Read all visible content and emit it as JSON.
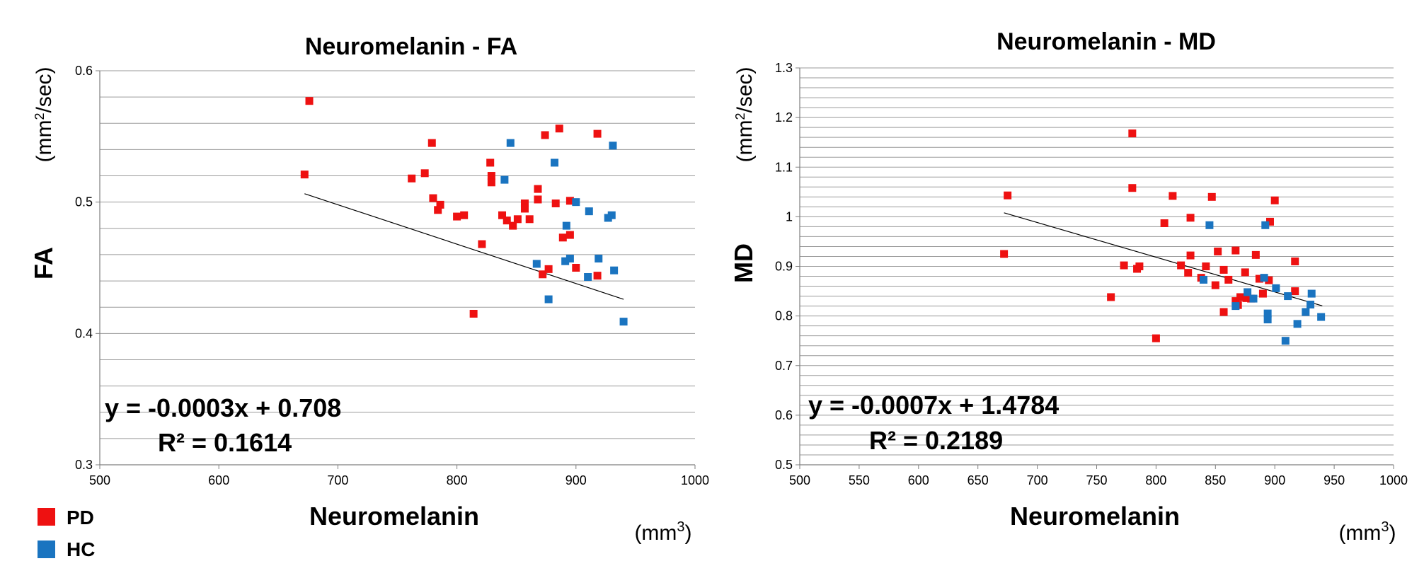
{
  "legend": [
    {
      "label": "PD",
      "color": "#ee1111"
    },
    {
      "label": "HC",
      "color": "#1a74c0"
    }
  ],
  "chart_data": [
    {
      "type": "scatter",
      "title": "Neuromelanin - FA",
      "xlabel": "Neuromelanin",
      "ylabel": "FA",
      "yunits_prefix": "(mm",
      "yunits_sup": "2",
      "yunits_suffix": "/sec)",
      "xunits_prefix": "(mm",
      "xunits_sup": "3",
      "xunits_suffix": ")",
      "xlim": [
        500,
        1000
      ],
      "ylim": [
        0.3,
        0.6
      ],
      "xticks": [
        500,
        600,
        700,
        800,
        900,
        1000
      ],
      "yticks": [
        0.3,
        0.4,
        0.5,
        0.6
      ],
      "ytick_labels": [
        "0.3",
        "0.4",
        "0.5",
        "0.6"
      ],
      "gridline_step": 0.02,
      "equation": "y = -0.0003x + 0.708",
      "r_squared": "R² = 0.1614",
      "trendline": {
        "slope": -0.0003,
        "intercept": 0.708,
        "x_range": [
          672,
          940
        ]
      },
      "series": [
        {
          "name": "PD",
          "color": "#ee1111",
          "points": [
            [
              672,
              0.521
            ],
            [
              676,
              0.577
            ],
            [
              762,
              0.518
            ],
            [
              773,
              0.522
            ],
            [
              779,
              0.545
            ],
            [
              780,
              0.503
            ],
            [
              784,
              0.494
            ],
            [
              786,
              0.498
            ],
            [
              800,
              0.489
            ],
            [
              806,
              0.49
            ],
            [
              814,
              0.415
            ],
            [
              821,
              0.468
            ],
            [
              828,
              0.53
            ],
            [
              829,
              0.52
            ],
            [
              829,
              0.515
            ],
            [
              838,
              0.49
            ],
            [
              842,
              0.486
            ],
            [
              847,
              0.482
            ],
            [
              851,
              0.487
            ],
            [
              857,
              0.499
            ],
            [
              857,
              0.495
            ],
            [
              861,
              0.487
            ],
            [
              868,
              0.51
            ],
            [
              868,
              0.502
            ],
            [
              872,
              0.445
            ],
            [
              874,
              0.551
            ],
            [
              877,
              0.449
            ],
            [
              883,
              0.499
            ],
            [
              886,
              0.556
            ],
            [
              889,
              0.473
            ],
            [
              895,
              0.501
            ],
            [
              895,
              0.475
            ],
            [
              900,
              0.45
            ],
            [
              918,
              0.444
            ],
            [
              918,
              0.552
            ]
          ]
        },
        {
          "name": "HC",
          "color": "#1a74c0",
          "points": [
            [
              840,
              0.517
            ],
            [
              845,
              0.545
            ],
            [
              867,
              0.453
            ],
            [
              877,
              0.426
            ],
            [
              882,
              0.53
            ],
            [
              891,
              0.455
            ],
            [
              892,
              0.482
            ],
            [
              895,
              0.457
            ],
            [
              900,
              0.5
            ],
            [
              910,
              0.443
            ],
            [
              911,
              0.493
            ],
            [
              919,
              0.457
            ],
            [
              927,
              0.488
            ],
            [
              930,
              0.49
            ],
            [
              931,
              0.543
            ],
            [
              932,
              0.448
            ],
            [
              940,
              0.409
            ]
          ]
        }
      ]
    },
    {
      "type": "scatter",
      "title": "Neuromelanin - MD",
      "xlabel": "Neuromelanin",
      "ylabel": "MD",
      "yunits_prefix": "(mm",
      "yunits_sup": "2",
      "yunits_suffix": "/sec)",
      "xunits_prefix": "(mm",
      "xunits_sup": "3",
      "xunits_suffix": ")",
      "xlim": [
        500,
        1000
      ],
      "ylim": [
        0.5,
        1.3
      ],
      "xticks": [
        500,
        550,
        600,
        650,
        700,
        750,
        800,
        850,
        900,
        950,
        1000
      ],
      "yticks": [
        0.5,
        0.6,
        0.7,
        0.8,
        0.9,
        1.0,
        1.1,
        1.2,
        1.3
      ],
      "ytick_labels": [
        "0.5",
        "0.6",
        "0.7",
        "0.8",
        "0.9",
        "1",
        "1.1",
        "1.2",
        "1.3"
      ],
      "gridline_step": 0.02,
      "equation": "y = -0.0007x + 1.4784",
      "r_squared": "R² = 0.2189",
      "trendline": {
        "slope": -0.0007,
        "intercept": 1.4784,
        "x_range": [
          672,
          940
        ]
      },
      "series": [
        {
          "name": "PD",
          "color": "#ee1111",
          "points": [
            [
              672,
              0.925
            ],
            [
              675,
              1.043
            ],
            [
              762,
              0.838
            ],
            [
              773,
              0.902
            ],
            [
              780,
              1.168
            ],
            [
              780,
              1.058
            ],
            [
              784,
              0.895
            ],
            [
              786,
              0.9
            ],
            [
              800,
              0.755
            ],
            [
              807,
              0.987
            ],
            [
              814,
              1.042
            ],
            [
              821,
              0.902
            ],
            [
              827,
              0.887
            ],
            [
              829,
              0.922
            ],
            [
              829,
              0.998
            ],
            [
              838,
              0.877
            ],
            [
              842,
              0.9
            ],
            [
              847,
              1.04
            ],
            [
              850,
              0.862
            ],
            [
              852,
              0.93
            ],
            [
              857,
              0.893
            ],
            [
              857,
              0.808
            ],
            [
              861,
              0.873
            ],
            [
              867,
              0.932
            ],
            [
              867,
              0.83
            ],
            [
              869,
              0.822
            ],
            [
              871,
              0.838
            ],
            [
              875,
              0.888
            ],
            [
              876,
              0.836
            ],
            [
              880,
              0.835
            ],
            [
              884,
              0.923
            ],
            [
              887,
              0.875
            ],
            [
              890,
              0.845
            ],
            [
              895,
              0.872
            ],
            [
              896,
              0.99
            ],
            [
              900,
              1.033
            ],
            [
              917,
              0.91
            ],
            [
              917,
              0.85
            ]
          ]
        },
        {
          "name": "HC",
          "color": "#1a74c0",
          "points": [
            [
              840,
              0.873
            ],
            [
              845,
              0.983
            ],
            [
              867,
              0.82
            ],
            [
              877,
              0.848
            ],
            [
              882,
              0.835
            ],
            [
              891,
              0.877
            ],
            [
              892,
              0.983
            ],
            [
              894,
              0.805
            ],
            [
              894,
              0.793
            ],
            [
              901,
              0.856
            ],
            [
              909,
              0.75
            ],
            [
              911,
              0.84
            ],
            [
              919,
              0.784
            ],
            [
              926,
              0.808
            ],
            [
              930,
              0.823
            ],
            [
              931,
              0.845
            ],
            [
              939,
              0.798
            ]
          ]
        }
      ]
    }
  ]
}
